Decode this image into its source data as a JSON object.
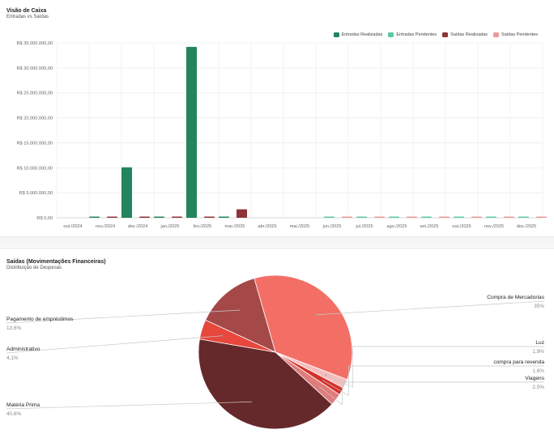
{
  "cards": {
    "cash": {
      "title": "Visão de Caixa",
      "subtitle": "Entradas vs Saídas"
    },
    "expenses": {
      "title": "Saídas (Movimentações Financeiras)",
      "subtitle": "Distribuição de Despesas"
    }
  },
  "colors": {
    "entradas_realizadas": "#23845f",
    "entradas_pendentes": "#5ccaa5",
    "saidas_realizadas": "#8f3438",
    "saidas_pendentes": "#e99a9a"
  },
  "chart_data": [
    {
      "type": "bar",
      "categories": [
        "out./2024",
        "nov./2024",
        "dez./2024",
        "jan./2025",
        "fev./2025",
        "mar./2025",
        "abr./2025",
        "mai./2025",
        "jun./2025",
        "jul./2025",
        "ago./2025",
        "set./2025",
        "out./2025",
        "nov./2025",
        "dez./2025"
      ],
      "ylim": [
        0,
        35000000
      ],
      "yticks": [
        0,
        5000000,
        10000000,
        15000000,
        20000000,
        25000000,
        30000000,
        35000000
      ],
      "ytick_labels": [
        "R$ 0,00",
        "R$ 5.000.000,00",
        "R$ 10.000.000,00",
        "R$ 15.000.000,00",
        "R$ 20.000.000,00",
        "R$ 25.000.000,00",
        "R$ 30.000.000,00",
        "R$ 35.000.000,00"
      ],
      "legend_position": "top-right",
      "grid": true,
      "series": [
        {
          "name": "Entradas Realizadas",
          "color": "#23845f",
          "values": [
            0,
            60000,
            10100000,
            60000,
            34200000,
            150000,
            0,
            0,
            0,
            0,
            0,
            0,
            0,
            0,
            0
          ]
        },
        {
          "name": "Entradas Pendentes",
          "color": "#5ccaa5",
          "values": [
            0,
            0,
            0,
            0,
            0,
            0,
            0,
            0,
            50000,
            120000,
            200000,
            60000,
            120000,
            90000,
            40000
          ]
        },
        {
          "name": "Saídas Realizadas",
          "color": "#8f3438",
          "values": [
            0,
            80000,
            100000,
            80000,
            100000,
            1700000,
            0,
            0,
            0,
            0,
            0,
            0,
            0,
            0,
            0
          ]
        },
        {
          "name": "Saídas Pendentes",
          "color": "#e99a9a",
          "values": [
            0,
            0,
            0,
            0,
            0,
            0,
            0,
            0,
            40000,
            50000,
            60000,
            50000,
            40000,
            40000,
            40000
          ]
        }
      ]
    },
    {
      "type": "pie",
      "slices": [
        {
          "label": "Compra de Mercadorias",
          "value": 35,
          "pct": "35%",
          "color": "#f36f66"
        },
        {
          "label": "Luz",
          "value": 1.9,
          "pct": "1,9%",
          "color": "#f5bdbd"
        },
        {
          "label": "compra para revenda",
          "value": 1.6,
          "pct": "1,6%",
          "color": "#d4312a"
        },
        {
          "label": "Viagens",
          "value": 2.5,
          "pct": "2,5%",
          "color": "#e07b7b"
        },
        {
          "label": "Matéria Prima",
          "value": 40.6,
          "pct": "40,6%",
          "color": "#66292b"
        },
        {
          "label": "Administrativo",
          "value": 4.1,
          "pct": "4,1%",
          "color": "#e7473c"
        },
        {
          "label": "Pagamento de empréstimos",
          "value": 13.6,
          "pct": "13,6%",
          "color": "#a54848"
        }
      ]
    }
  ]
}
